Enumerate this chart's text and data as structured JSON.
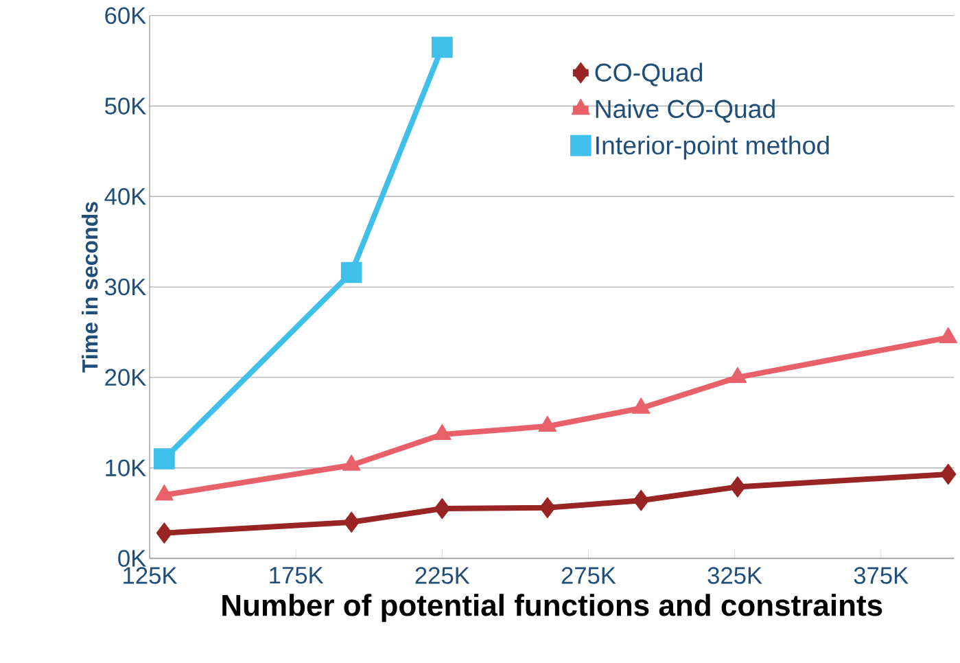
{
  "chart_data": {
    "type": "line",
    "xlabel": "Number of potential functions and constraints",
    "ylabel": "Time in seconds",
    "xlim": [
      125000,
      400000
    ],
    "ylim": [
      0,
      60000
    ],
    "xticks": [
      {
        "value": 125000,
        "label": "125K"
      },
      {
        "value": 175000,
        "label": "175K"
      },
      {
        "value": 225000,
        "label": "225K"
      },
      {
        "value": 275000,
        "label": "275K"
      },
      {
        "value": 325000,
        "label": "325K"
      },
      {
        "value": 375000,
        "label": "375K"
      }
    ],
    "yticks": [
      {
        "value": 0,
        "label": "0K"
      },
      {
        "value": 10000,
        "label": "10K"
      },
      {
        "value": 20000,
        "label": "20K"
      },
      {
        "value": 30000,
        "label": "30K"
      },
      {
        "value": 40000,
        "label": "40K"
      },
      {
        "value": 50000,
        "label": "50K"
      },
      {
        "value": 60000,
        "label": "60K"
      }
    ],
    "grid": "y",
    "legend": "top right",
    "line_style": "solid",
    "series": [
      {
        "name": "CO-Quad",
        "color": "#992424",
        "marker": "diamond",
        "x": [
          130000,
          194000,
          225000,
          261000,
          293000,
          326000,
          398000
        ],
        "values": [
          2800,
          4000,
          5500,
          5600,
          6400,
          7900,
          9300
        ]
      },
      {
        "name": "Naive CO-Quad",
        "color": "#e8606a",
        "marker": "triangle",
        "x": [
          130000,
          194000,
          225000,
          261000,
          293000,
          326000,
          398000
        ],
        "values": [
          7000,
          10300,
          13700,
          14600,
          16600,
          20000,
          24400
        ]
      },
      {
        "name": "Interior-point method",
        "color": "#3ec0ea",
        "marker": "square",
        "x": [
          130000,
          194000,
          225000
        ],
        "values": [
          11000,
          31600,
          56500
        ]
      }
    ]
  }
}
